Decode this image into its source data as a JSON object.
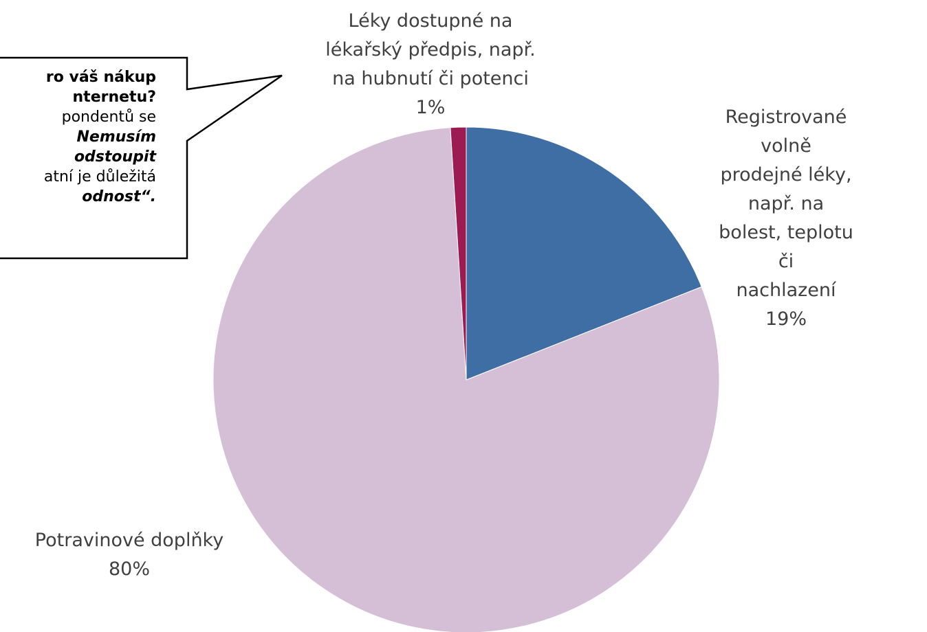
{
  "chart_data": {
    "type": "pie",
    "categories": [
      "Registrované volně\nprodejné léky, např. na\nbolest, teplotu či\nnachlazení",
      "Potravinové doplňky",
      "Léky dostupné na\nlékařský předpis, např.\nna hubnutí či potenci"
    ],
    "values": [
      19,
      80,
      1
    ],
    "value_labels": [
      "19%",
      "80%",
      "1%"
    ],
    "colors": [
      "#3f6ea5",
      "#d4bfd7",
      "#9b1b52"
    ],
    "annotation": [
      "ro váš nákup",
      "nternetu?",
      "pondentů se",
      "Nemusím",
      "odstoupit",
      "atní je důležitá",
      "odnost“."
    ]
  }
}
